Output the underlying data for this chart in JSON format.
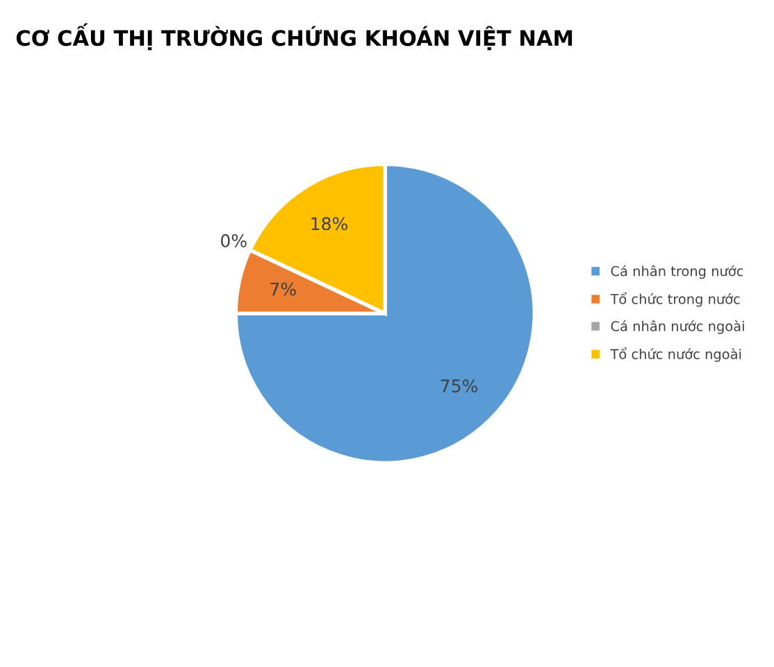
{
  "chart_data": {
    "type": "pie",
    "title": "CƠ CẤU THỊ TRƯỜNG CHỨNG KHOÁN VIỆT NAM",
    "categories": [
      "Cá nhân trong nước",
      "Tổ chức trong nước",
      "Cá nhân nước ngoài",
      "Tổ chức nước ngoài"
    ],
    "values": [
      75,
      7,
      0,
      18
    ],
    "colors": [
      "#5b9bd5",
      "#ed7d31",
      "#a5a5a5",
      "#ffc000"
    ],
    "value_labels": [
      "75%",
      "7%",
      "0%",
      "18%"
    ],
    "legend": "right"
  }
}
